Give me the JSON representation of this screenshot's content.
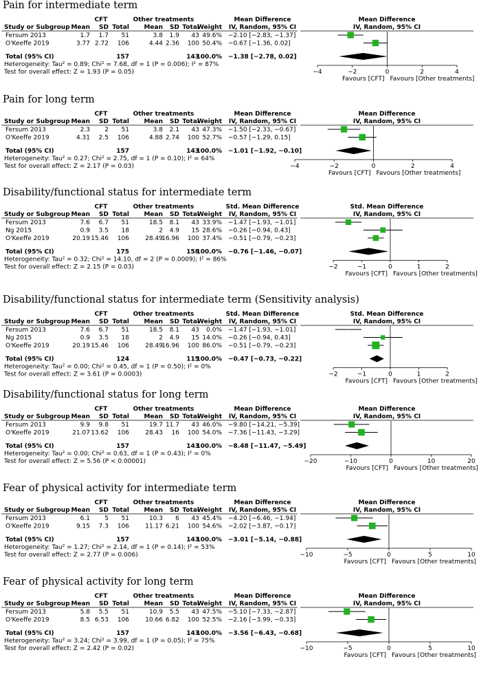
{
  "colors": {
    "study_marker": "#22b222",
    "diamond": "#000000",
    "line": "#000000"
  },
  "headers": {
    "study": "Study or Subgroup",
    "cft": "CFT",
    "other": "Other treatments",
    "mean": "Mean",
    "sd": "SD",
    "total": "Total",
    "weight": "Weight",
    "ci": "IV, Random, 95% CI",
    "favours_left": "Favours [CFT]",
    "favours_right": "Favours [Other treatments]",
    "total_row_label": "Total (95% CI)"
  },
  "chart_data": [
    {
      "type": "forest",
      "title": "Pain for intermediate term",
      "effect_label": "Mean Difference",
      "xlim": [
        -4,
        4
      ],
      "ticks": [
        "−4",
        "−2",
        "0",
        "2",
        "4"
      ],
      "studies": [
        {
          "name": "Fersum 2013",
          "cft_mean": "1.7",
          "cft_sd": "1.7",
          "cft_total": "51",
          "oth_mean": "3.8",
          "oth_sd": "1.9",
          "oth_total": "43",
          "weight": "49.6%",
          "ci_text": "−2.10 [−2.83, −1.37]",
          "est": -2.1,
          "lo": -2.83,
          "hi": -1.37,
          "w": 49.6
        },
        {
          "name": "O'Keeffe 2019",
          "cft_mean": "3.77",
          "cft_sd": "2.72",
          "cft_total": "106",
          "oth_mean": "4.44",
          "oth_sd": "2.36",
          "oth_total": "100",
          "weight": "50.4%",
          "ci_text": "−0.67 [−1.36, 0.02]",
          "est": -0.67,
          "lo": -1.36,
          "hi": 0.02,
          "w": 50.4
        }
      ],
      "total": {
        "cft_total": "157",
        "oth_total": "143",
        "weight": "100.0%",
        "ci_text": "−1.38 [−2.78, 0.02]",
        "est": -1.38,
        "lo": -2.78,
        "hi": 0.02
      },
      "heterogeneity": "Heterogeneity: Tau² = 0.89; Chi² = 7.68, df = 1 (P = 0.006); I² = 87%",
      "overall": "Test for overall effect: Z = 1.93 (P = 0.05)"
    },
    {
      "type": "forest",
      "title": "Pain for long term",
      "effect_label": "Mean Difference",
      "xlim": [
        -4,
        4
      ],
      "ticks": [
        "−4",
        "−2",
        "0",
        "2",
        "4"
      ],
      "studies": [
        {
          "name": "Fersum 2013",
          "cft_mean": "2.3",
          "cft_sd": "2",
          "cft_total": "51",
          "oth_mean": "3.8",
          "oth_sd": "2.1",
          "oth_total": "43",
          "weight": "47.3%",
          "ci_text": "−1.50 [−2.33, −0.67]",
          "est": -1.5,
          "lo": -2.33,
          "hi": -0.67,
          "w": 47.3
        },
        {
          "name": "O'Keeffe 2019",
          "cft_mean": "4.31",
          "cft_sd": "2.5",
          "cft_total": "106",
          "oth_mean": "4.88",
          "oth_sd": "2.74",
          "oth_total": "100",
          "weight": "52.7%",
          "ci_text": "−0.57 [−1.29, 0.15]",
          "est": -0.57,
          "lo": -1.29,
          "hi": 0.15,
          "w": 52.7
        }
      ],
      "total": {
        "cft_total": "157",
        "oth_total": "143",
        "weight": "100.0%",
        "ci_text": "−1.01 [−1.92, −0.10]",
        "est": -1.01,
        "lo": -1.92,
        "hi": -0.1
      },
      "heterogeneity": "Heterogeneity: Tau² = 0.27; Chi² = 2.75, df = 1 (P = 0.10); I² = 64%",
      "overall": "Test for overall effect: Z = 2.17 (P = 0.03)"
    },
    {
      "type": "forest",
      "title": "Disability/functional status for intermediate term",
      "effect_label": "Std. Mean Difference",
      "xlim": [
        -2,
        2
      ],
      "ticks": [
        "−2",
        "−1",
        "0",
        "1",
        "2"
      ],
      "studies": [
        {
          "name": "Fersum 2013",
          "cft_mean": "7.6",
          "cft_sd": "6.7",
          "cft_total": "51",
          "oth_mean": "18.5",
          "oth_sd": "8.1",
          "oth_total": "43",
          "weight": "33.9%",
          "ci_text": "−1.47 [−1.93, −1.01]",
          "est": -1.47,
          "lo": -1.93,
          "hi": -1.01,
          "w": 33.9
        },
        {
          "name": "Ng 2015",
          "cft_mean": "0.9",
          "cft_sd": "3.5",
          "cft_total": "18",
          "oth_mean": "2",
          "oth_sd": "4.9",
          "oth_total": "15",
          "weight": "28.6%",
          "ci_text": "−0.26 [−0.94, 0.43]",
          "est": -0.26,
          "lo": -0.94,
          "hi": 0.43,
          "w": 28.6
        },
        {
          "name": "O'Keeffe 2019",
          "cft_mean": "20.19",
          "cft_sd": "15.46",
          "cft_total": "106",
          "oth_mean": "28.49",
          "oth_sd": "16.96",
          "oth_total": "100",
          "weight": "37.4%",
          "ci_text": "−0.51 [−0.79, −0.23]",
          "est": -0.51,
          "lo": -0.79,
          "hi": -0.23,
          "w": 37.4
        }
      ],
      "total": {
        "cft_total": "175",
        "oth_total": "158",
        "weight": "100.0%",
        "ci_text": "−0.76 [−1.46, −0.07]",
        "est": -0.76,
        "lo": -1.46,
        "hi": -0.07
      },
      "heterogeneity": "Heterogeneity: Tau² = 0.32; Chi² = 14.10, df = 2 (P = 0.0009); I² = 86%",
      "overall": "Test for overall effect: Z = 2.15 (P = 0.03)"
    },
    {
      "type": "forest",
      "title": "Disability/functional status for intermediate term (Sensitivity analysis)",
      "effect_label": "Std. Mean Difference",
      "xlim": [
        -2,
        2
      ],
      "ticks": [
        "−2",
        "−1",
        "0",
        "1",
        "2"
      ],
      "studies": [
        {
          "name": "Fersum 2013",
          "cft_mean": "7.6",
          "cft_sd": "6.7",
          "cft_total": "51",
          "oth_mean": "18.5",
          "oth_sd": "8.1",
          "oth_total": "43",
          "weight": "0.0%",
          "ci_text": "−1.47 [−1.93, −1.01]",
          "est": -1.47,
          "lo": -1.93,
          "hi": -1.01,
          "w": 0
        },
        {
          "name": "Ng 2015",
          "cft_mean": "0.9",
          "cft_sd": "3.5",
          "cft_total": "18",
          "oth_mean": "2",
          "oth_sd": "4.9",
          "oth_total": "15",
          "weight": "14.0%",
          "ci_text": "−0.26 [−0.94, 0.43]",
          "est": -0.26,
          "lo": -0.94,
          "hi": 0.43,
          "w": 14.0
        },
        {
          "name": "O'Keeffe 2019",
          "cft_mean": "20.19",
          "cft_sd": "15.46",
          "cft_total": "106",
          "oth_mean": "28.49",
          "oth_sd": "16.96",
          "oth_total": "100",
          "weight": "86.0%",
          "ci_text": "−0.51 [−0.79, −0.23]",
          "est": -0.51,
          "lo": -0.79,
          "hi": -0.23,
          "w": 86.0
        }
      ],
      "total": {
        "cft_total": "124",
        "oth_total": "115",
        "weight": "100.0%",
        "ci_text": "−0.47 [−0.73, −0.22]",
        "est": -0.47,
        "lo": -0.73,
        "hi": -0.22
      },
      "heterogeneity": "Heterogeneity: Tau² = 0.00; Chi² = 0.45, df = 1 (P = 0.50); I² = 0%",
      "overall": "Test for overall effect: Z = 3.61 (P = 0.0003)"
    },
    {
      "type": "forest",
      "title": "Disability/functional status for long term",
      "effect_label": "Mean Difference",
      "xlim": [
        -20,
        20
      ],
      "ticks": [
        "−20",
        "−10",
        "0",
        "10",
        "20"
      ],
      "studies": [
        {
          "name": "Fersum 2013",
          "cft_mean": "9.9",
          "cft_sd": "9.8",
          "cft_total": "51",
          "oth_mean": "19.7",
          "oth_sd": "11.7",
          "oth_total": "43",
          "weight": "46.0%",
          "ci_text": "−9.80 [−14.21, −5.39]",
          "est": -9.8,
          "lo": -14.21,
          "hi": -5.39,
          "w": 46.0
        },
        {
          "name": "O'Keeffe 2019",
          "cft_mean": "21.07",
          "cft_sd": "13.62",
          "cft_total": "106",
          "oth_mean": "28.43",
          "oth_sd": "16",
          "oth_total": "100",
          "weight": "54.0%",
          "ci_text": "−7.36 [−11.43, −3.29]",
          "est": -7.36,
          "lo": -11.43,
          "hi": -3.29,
          "w": 54.0
        }
      ],
      "total": {
        "cft_total": "157",
        "oth_total": "143",
        "weight": "100.0%",
        "ci_text": "−8.48 [−11.47, −5.49]",
        "est": -8.48,
        "lo": -11.47,
        "hi": -5.49
      },
      "heterogeneity": "Heterogeneity: Tau² = 0.00; Chi² = 0.63, df = 1 (P = 0.43); I² = 0%",
      "overall": "Test for overall effect: Z = 5.56 (P < 0.00001)"
    },
    {
      "type": "forest",
      "title": "Fear of physical activity for intermediate term",
      "effect_label": "Mean Difference",
      "xlim": [
        -10,
        10
      ],
      "ticks": [
        "−10",
        "−5",
        "0",
        "5",
        "10"
      ],
      "studies": [
        {
          "name": "Fersum 2013",
          "cft_mean": "6.1",
          "cft_sd": "5",
          "cft_total": "51",
          "oth_mean": "10.3",
          "oth_sd": "6",
          "oth_total": "43",
          "weight": "45.4%",
          "ci_text": "−4.20 [−6.46, −1.94]",
          "est": -4.2,
          "lo": -6.46,
          "hi": -1.94,
          "w": 45.4
        },
        {
          "name": "O'Keeffe 2019",
          "cft_mean": "9.15",
          "cft_sd": "7.3",
          "cft_total": "106",
          "oth_mean": "11.17",
          "oth_sd": "6.21",
          "oth_total": "100",
          "weight": "54.6%",
          "ci_text": "−2.02 [−3.87, −0.17]",
          "est": -2.02,
          "lo": -3.87,
          "hi": -0.17,
          "w": 54.6
        }
      ],
      "total": {
        "cft_total": "157",
        "oth_total": "143",
        "weight": "100.0%",
        "ci_text": "−3.01 [−5.14, −0.88]",
        "est": -3.01,
        "lo": -5.14,
        "hi": -0.88
      },
      "heterogeneity": "Heterogeneity: Tau² = 1.27; Chi² = 2.14, df = 1 (P = 0.14); I² = 53%",
      "overall": "Test for overall effect: Z = 2.77 (P = 0.006)"
    },
    {
      "type": "forest",
      "title": "Fear of physical activity for long term",
      "effect_label": "Mean Difference",
      "xlim": [
        -10,
        10
      ],
      "ticks": [
        "−10",
        "−5",
        "0",
        "5",
        "10"
      ],
      "studies": [
        {
          "name": "Fersum 2013",
          "cft_mean": "5.8",
          "cft_sd": "5.5",
          "cft_total": "51",
          "oth_mean": "10.9",
          "oth_sd": "5.5",
          "oth_total": "43",
          "weight": "47.5%",
          "ci_text": "−5.10 [−7.33, −2.87]",
          "est": -5.1,
          "lo": -7.33,
          "hi": -2.87,
          "w": 47.5
        },
        {
          "name": "O'Keeffe 2019",
          "cft_mean": "8.5",
          "cft_sd": "6.53",
          "cft_total": "106",
          "oth_mean": "10.66",
          "oth_sd": "6.82",
          "oth_total": "100",
          "weight": "52.5%",
          "ci_text": "−2.16 [−3.99, −0.33]",
          "est": -2.16,
          "lo": -3.99,
          "hi": -0.33,
          "w": 52.5
        }
      ],
      "total": {
        "cft_total": "157",
        "oth_total": "143",
        "weight": "100.0%",
        "ci_text": "−3.56 [−6.43, −0.68]",
        "est": -3.56,
        "lo": -6.43,
        "hi": -0.68
      },
      "heterogeneity": "Heterogeneity: Tau² = 3.24; Chi² = 3.99, df = 1 (P = 0.05); I² = 75%",
      "overall": "Test for overall effect: Z = 2.42 (P = 0.02)"
    }
  ]
}
